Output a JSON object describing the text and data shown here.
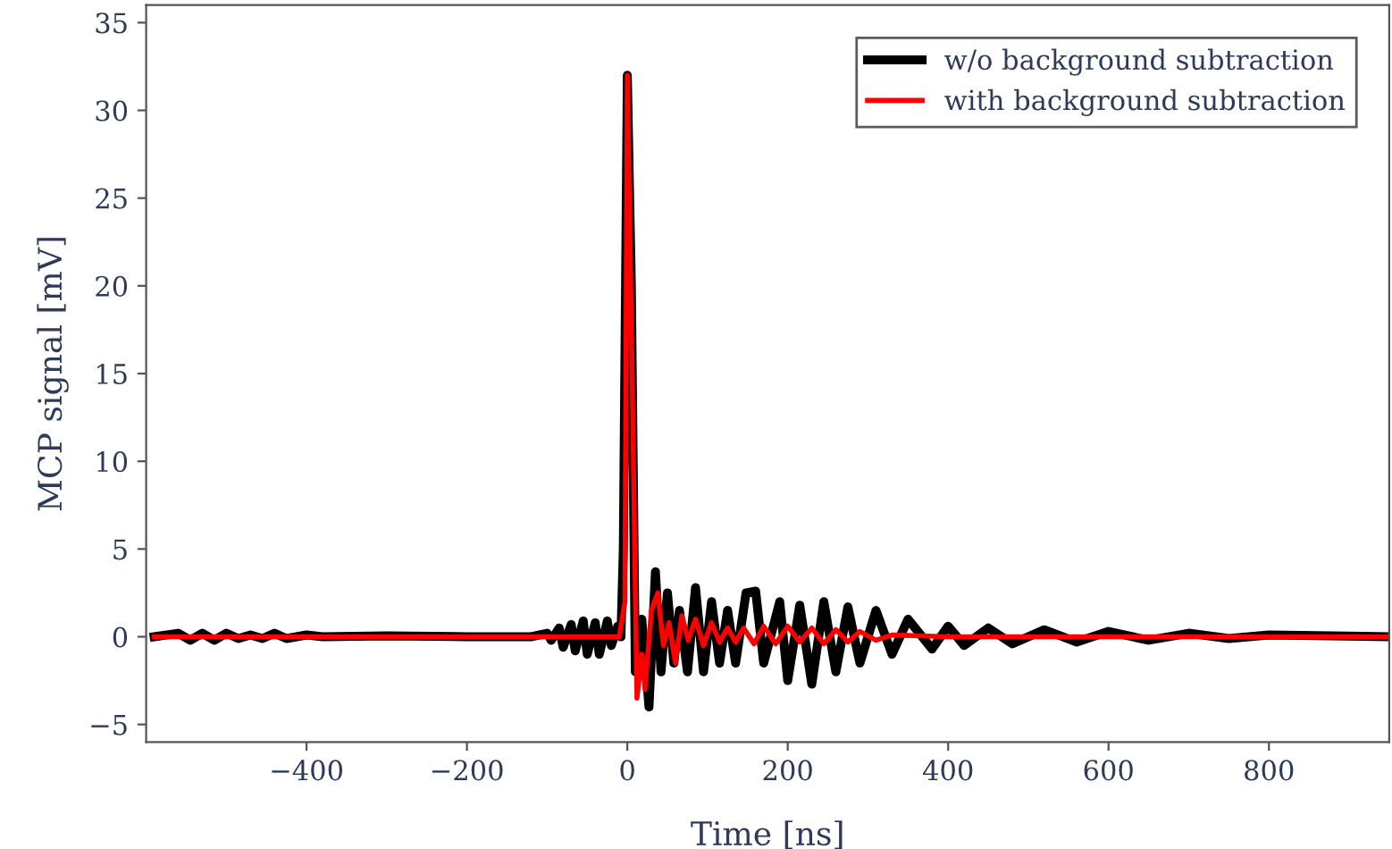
{
  "chart_data": {
    "type": "line",
    "xlabel": "Time [ns]",
    "ylabel": "MCP signal [mV]",
    "xlim": [
      -600,
      950
    ],
    "ylim": [
      -6,
      36
    ],
    "xticks": [
      -400,
      -200,
      0,
      200,
      400,
      600,
      800
    ],
    "yticks": [
      -5,
      0,
      5,
      10,
      15,
      20,
      25,
      30,
      35
    ],
    "grid": false,
    "legend": "top right",
    "marker": "none",
    "line_style": "solid",
    "series": [
      {
        "name": "w/o background subtraction",
        "color": "#000000",
        "x": [
          -590,
          -560,
          -545,
          -530,
          -515,
          -500,
          -485,
          -470,
          -455,
          -440,
          -425,
          -400,
          -380,
          -300,
          -200,
          -120,
          -100,
          -95,
          -85,
          -80,
          -70,
          -65,
          -55,
          -50,
          -40,
          -35,
          -25,
          -20,
          -12,
          -8,
          -5,
          0,
          5,
          10,
          18,
          27,
          35,
          42,
          50,
          58,
          65,
          75,
          85,
          95,
          105,
          115,
          125,
          135,
          148,
          160,
          170,
          190,
          200,
          215,
          230,
          245,
          260,
          275,
          290,
          310,
          330,
          350,
          380,
          400,
          420,
          450,
          480,
          520,
          560,
          600,
          650,
          700,
          750,
          800,
          950
        ],
        "values": [
          0,
          0.2,
          -0.2,
          0.2,
          -0.2,
          0.2,
          -0.1,
          0.1,
          -0.1,
          0.2,
          -0.1,
          0.1,
          0,
          0.05,
          0,
          0,
          0.2,
          -0.2,
          0.5,
          -0.6,
          0.7,
          -0.8,
          0.9,
          -1.0,
          0.8,
          -1.0,
          0.9,
          -0.5,
          0.6,
          0,
          5,
          32,
          20,
          -2,
          1,
          -4,
          3.7,
          -2,
          2.5,
          -1.5,
          1.5,
          -2,
          2.8,
          -2,
          2,
          -1.5,
          1.5,
          -1.5,
          2.5,
          2.6,
          -1.5,
          2,
          -2.5,
          1.8,
          -2.7,
          2,
          -2,
          1.7,
          -1.5,
          1.5,
          -1,
          1,
          -0.7,
          0.6,
          -0.5,
          0.5,
          -0.4,
          0.4,
          -0.3,
          0.3,
          -0.2,
          0.2,
          -0.1,
          0.1,
          0
        ]
      },
      {
        "name": "with background subtraction",
        "color": "#ff0000",
        "x": [
          -590,
          -300,
          -100,
          -10,
          -3,
          0,
          6,
          12,
          18,
          22,
          30,
          38,
          45,
          52,
          60,
          68,
          76,
          85,
          95,
          105,
          115,
          125,
          135,
          145,
          158,
          170,
          185,
          200,
          215,
          230,
          245,
          260,
          275,
          290,
          310,
          330,
          400,
          600,
          950
        ],
        "values": [
          0,
          0,
          0,
          0,
          2,
          32,
          15,
          -3.5,
          -1,
          -3,
          1.5,
          2.5,
          -0.5,
          0.8,
          -1.5,
          1.2,
          -0.2,
          1.0,
          -0.5,
          0.8,
          -0.3,
          0.5,
          -0.3,
          0.5,
          -0.4,
          0.6,
          -0.4,
          0.6,
          -0.3,
          0.5,
          -0.4,
          0.4,
          -0.3,
          0.3,
          -0.2,
          0.1,
          0,
          0,
          0
        ]
      }
    ]
  }
}
